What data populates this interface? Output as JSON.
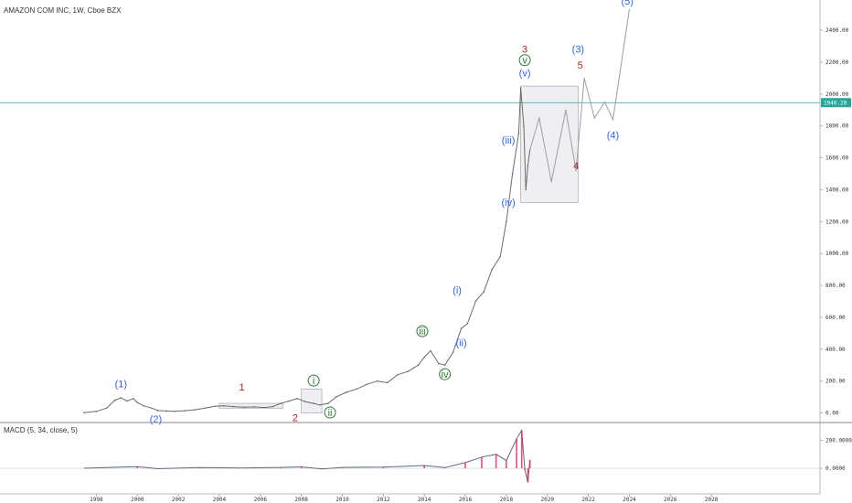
{
  "chart_data": {
    "type": "line",
    "title": "AMAZON COM INC, 1W, Cboe BZX",
    "y_ticks": [
      0,
      200,
      400,
      600,
      800,
      1000,
      1200,
      1400,
      1600,
      1800,
      2000,
      2200,
      2400
    ],
    "y_tick_labels": [
      "0.00",
      "200.00",
      "400.00",
      "600.00",
      "800.00",
      "1000.00",
      "1200.00",
      "1400.00",
      "1600.00",
      "1800.00",
      "2000.00",
      "2200.00",
      "2400.00"
    ],
    "ylim": [
      -60,
      2590
    ],
    "x_ticks": [
      1998,
      2000,
      2002,
      2004,
      2006,
      2008,
      2010,
      2012,
      2014,
      2016,
      2018,
      2020,
      2022,
      2024,
      2026,
      2028
    ],
    "x_tick_labels": [
      "1998",
      "2000",
      "2002",
      "2004",
      "2006",
      "2008",
      "2010",
      "2012",
      "2014",
      "2016",
      "2018",
      "2020",
      "2022",
      "2024",
      "2026",
      "2028"
    ],
    "xlim": [
      1993.3,
      2033.3
    ],
    "current_price": 1946.2,
    "current_price_label": "1946.20",
    "series": [
      {
        "values_x": [
          1997.4,
          1998.0,
          1998.5,
          1998.9,
          1999.2,
          1999.5,
          1999.8,
          2000.0,
          2000.3,
          2000.7,
          2001.0,
          2001.4,
          2001.8,
          2002.3,
          2002.8,
          2003.3,
          2003.8,
          2004.2,
          2004.7,
          2005.2,
          2005.7,
          2006.2,
          2006.6,
          2007.0,
          2007.4,
          2007.8,
          2008.2,
          2008.6,
          2008.9,
          2009.3,
          2009.7,
          2010.2,
          2010.7,
          2011.2,
          2011.7,
          2012.2,
          2012.7,
          2013.2,
          2013.7,
          2014.0,
          2014.3,
          2014.7,
          2015.0,
          2015.4,
          2015.8,
          2016.1,
          2016.5,
          2016.9,
          2017.3,
          2017.7,
          2018.0,
          2018.3,
          2018.6,
          2018.7,
          2018.85,
          2018.95,
          2019.05,
          2019.15
        ],
        "values_y": [
          2,
          10,
          30,
          80,
          95,
          75,
          90,
          65,
          45,
          30,
          15,
          12,
          10,
          14,
          20,
          30,
          42,
          45,
          40,
          36,
          38,
          34,
          40,
          60,
          75,
          90,
          70,
          60,
          50,
          60,
          100,
          130,
          150,
          180,
          200,
          190,
          240,
          260,
          300,
          350,
          390,
          310,
          300,
          380,
          530,
          560,
          700,
          760,
          900,
          980,
          1200,
          1500,
          1750,
          2040,
          1800,
          1400,
          1550,
          1650
        ]
      }
    ],
    "projection": {
      "values_x": [
        2019.15,
        2019.6,
        2020.2,
        2020.9,
        2021.4,
        2021.8,
        2022.3,
        2022.8,
        2023.2,
        2024.0
      ],
      "values_y": [
        1650,
        1850,
        1450,
        1900,
        1520,
        2100,
        1850,
        1950,
        1840,
        2530
      ]
    },
    "boxes": [
      {
        "x0": 2004.0,
        "x1": 2007.1,
        "y0": 30,
        "y1": 60
      },
      {
        "x0": 2008.0,
        "x1": 2009.0,
        "y0": 0,
        "y1": 150
      },
      {
        "x0": 2018.7,
        "x1": 2021.5,
        "y0": 1320,
        "y1": 2050
      }
    ],
    "wave_labels": [
      {
        "text": "(1)",
        "x": 1999.2,
        "y": 160,
        "color": "#2962ff"
      },
      {
        "text": "(2)",
        "x": 2000.9,
        "y": -60,
        "color": "#2962ff"
      },
      {
        "text": "1",
        "x": 2005.1,
        "y": 140,
        "color": "#b71c1c"
      },
      {
        "text": "2",
        "x": 2007.7,
        "y": -50,
        "color": "#b71c1c"
      },
      {
        "text": "i",
        "x": 2008.6,
        "y": 180,
        "color": "#2e7d32",
        "circled": true
      },
      {
        "text": "ii",
        "x": 2009.4,
        "y": -20,
        "color": "#2e7d32",
        "circled": true
      },
      {
        "text": "iii",
        "x": 2013.9,
        "y": 490,
        "color": "#2e7d32",
        "circled": true
      },
      {
        "text": "iv",
        "x": 2015.0,
        "y": 220,
        "color": "#2e7d32",
        "circled": true
      },
      {
        "text": "(i)",
        "x": 2015.6,
        "y": 750,
        "color": "#2962ff"
      },
      {
        "text": "(ii)",
        "x": 2015.8,
        "y": 420,
        "color": "#2962ff"
      },
      {
        "text": "(iii)",
        "x": 2018.1,
        "y": 1690,
        "color": "#2962ff"
      },
      {
        "text": "(iv)",
        "x": 2018.1,
        "y": 1300,
        "color": "#2962ff"
      },
      {
        "text": "(v)",
        "x": 2018.9,
        "y": 2110,
        "color": "#2962ff"
      },
      {
        "text": "v",
        "x": 2018.9,
        "y": 2190,
        "color": "#2e7d32",
        "circled": true
      },
      {
        "text": "3",
        "x": 2018.9,
        "y": 2260,
        "color": "#b71c1c"
      },
      {
        "text": "(3)",
        "x": 2021.5,
        "y": 2260,
        "color": "#2962ff"
      },
      {
        "text": "5",
        "x": 2021.6,
        "y": 2160,
        "color": "#b71c1c"
      },
      {
        "text": "4",
        "x": 2021.4,
        "y": 1530,
        "color": "#b71c1c"
      },
      {
        "text": "(4)",
        "x": 2023.2,
        "y": 1720,
        "color": "#2962ff"
      },
      {
        "text": "(5)",
        "x": 2023.9,
        "y": 2560,
        "color": "#2962ff"
      }
    ],
    "macd": {
      "label": "MACD (5, 34, close, 5)",
      "y_ticks": [
        0,
        200
      ],
      "y_tick_labels": [
        "0.0000",
        "200.0000"
      ],
      "ylim": [
        -130,
        300
      ],
      "values_x": [
        1997.4,
        2000.0,
        2001.0,
        2003.0,
        2005.0,
        2007.0,
        2008.0,
        2009.0,
        2010.0,
        2012.0,
        2014.0,
        2015.0,
        2016.0,
        2016.8,
        2017.5,
        2018.0,
        2018.5,
        2018.75,
        2018.9,
        2019.05,
        2019.15
      ],
      "values_y": [
        0,
        12,
        -3,
        5,
        2,
        6,
        10,
        -5,
        6,
        8,
        20,
        5,
        40,
        80,
        100,
        55,
        210,
        270,
        -10,
        -100,
        60
      ]
    },
    "colors": {
      "price": "#6b6b6b",
      "projection": "#9e9e9e",
      "current_price": "#26a69a",
      "macd": "#e91e63"
    },
    "grid": false
  }
}
